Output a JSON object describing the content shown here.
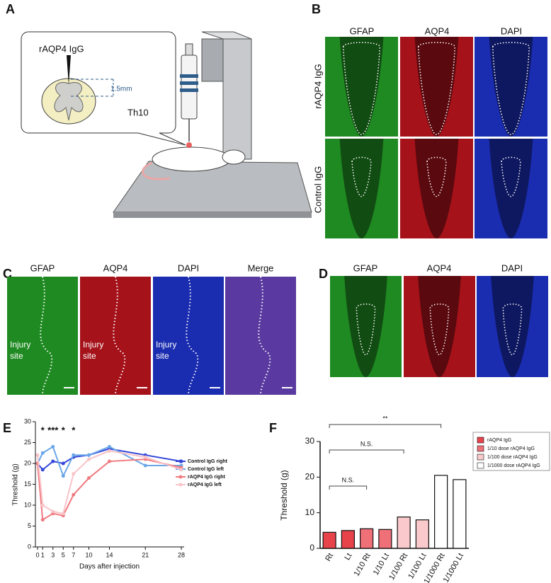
{
  "figure": {
    "panel_labels": [
      "A",
      "B",
      "C",
      "D",
      "E",
      "F"
    ],
    "A": {
      "injection": "rAQP4 IgG",
      "depth": "1.5mm",
      "level": "Th10"
    },
    "B": {
      "columns": [
        "GFAP",
        "AQP4",
        "DAPI"
      ],
      "rows": [
        "rAQP4 IgG",
        "Control IgG"
      ]
    },
    "C": {
      "columns": [
        "GFAP",
        "AQP4",
        "DAPI",
        "Merge"
      ],
      "site_label_lines": [
        "Injury",
        "site"
      ]
    },
    "D": {
      "columns": [
        "GFAP",
        "AQP4",
        "DAPI"
      ]
    }
  },
  "chart_data": [
    {
      "type": "line",
      "x": [
        0,
        1,
        3,
        5,
        7,
        10,
        14,
        21,
        28
      ],
      "xlim": [
        0,
        28
      ],
      "xticks": [
        0,
        1,
        3,
        5,
        7,
        10,
        14,
        21,
        28
      ],
      "ylim": [
        0,
        30
      ],
      "yticks": [
        0,
        5,
        10,
        15,
        20,
        25,
        30
      ],
      "x_label": "Days after injection",
      "y_label": "Threshold (g)",
      "series": [
        {
          "name": "Control IgG right",
          "color": "#3346d8",
          "values": [
            20,
            18.5,
            20.5,
            20,
            21.5,
            22,
            23.5,
            22,
            20.5
          ]
        },
        {
          "name": "Control IgG left",
          "color": "#6aa6e8",
          "values": [
            20,
            22.5,
            24,
            17,
            22,
            22,
            24,
            19.5,
            19.5
          ]
        },
        {
          "name": "rAQP4 IgG right",
          "color": "#f07a80",
          "values": [
            20,
            6.5,
            8,
            7.5,
            12.5,
            16.5,
            20.5,
            21,
            19
          ]
        },
        {
          "name": "rAQP4 IgG left",
          "color": "#f8c4c8",
          "values": [
            22,
            10,
            8.5,
            8,
            17.5,
            21,
            23,
            21.5,
            18.5
          ]
        }
      ],
      "annotations": [
        {
          "x": 1,
          "text": "*"
        },
        {
          "x": 3,
          "text": "***"
        },
        {
          "x": 5,
          "text": "*"
        },
        {
          "x": 7,
          "text": "*"
        }
      ],
      "legend": "right"
    },
    {
      "type": "bar",
      "categories": [
        "Rt",
        "Lt",
        "1/10 Rt",
        "1/10 Lt",
        "1/100 Rt",
        "1/100 Lt",
        "1/1000 Rt",
        "1/1000 Lt"
      ],
      "values": [
        4.5,
        5,
        5.5,
        5.3,
        8.8,
        8,
        20.5,
        19.3
      ],
      "colors": [
        "#e8424b",
        "#e8424b",
        "#f07078",
        "#f07078",
        "#f9c9cb",
        "#f9c9cb",
        "#ffffff",
        "#ffffff"
      ],
      "ylim": [
        0,
        30
      ],
      "yticks": [
        0,
        10,
        20,
        30
      ],
      "y_label": "Threshold (g)",
      "legend_entries": [
        {
          "name": "rAQP4 IgG",
          "color": "#e8424b"
        },
        {
          "name": "1/10 dose rAQP4 IgG",
          "color": "#f07078"
        },
        {
          "name": "1/100 dose rAQP4 IgG",
          "color": "#f9c9cb"
        },
        {
          "name": "1/1000 dose rAQP4 IgG",
          "color": "#ffffff"
        }
      ],
      "brackets": [
        {
          "from": "Rt",
          "to": "1/1000 Rt",
          "label": "**"
        },
        {
          "from": "Rt",
          "to": "1/100 Rt",
          "label": "N.S."
        },
        {
          "from": "Rt",
          "to": "1/10 Rt",
          "label": "N.S."
        }
      ],
      "legend": "top-right"
    }
  ]
}
